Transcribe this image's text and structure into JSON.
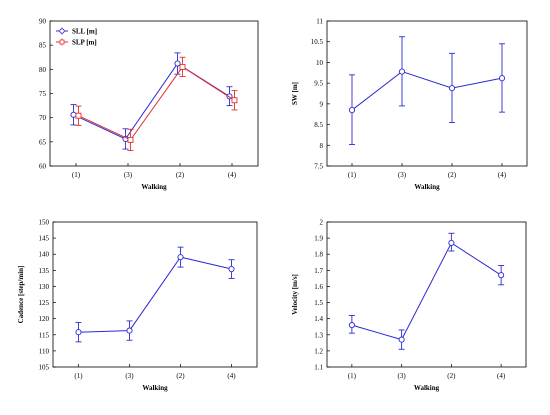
{
  "chart_data": [
    {
      "type": "line",
      "xlabel": "Walking",
      "ylabel": "",
      "categories": [
        "(1)",
        "(3)",
        "(2)",
        "(4)"
      ],
      "ylim": [
        60,
        90
      ],
      "yticks": [
        "60",
        "65",
        "70",
        "75",
        "80",
        "85",
        "90"
      ],
      "grid": false,
      "legend_position": "top-left",
      "series": [
        {
          "name": "SLL [m]",
          "color": "#2b2bd6",
          "marker": "circle",
          "values": [
            70.6,
            65.6,
            81.2,
            74.4
          ],
          "err_low": [
            68.5,
            63.5,
            79.0,
            72.5
          ],
          "err_high": [
            72.7,
            67.7,
            83.4,
            76.4
          ]
        },
        {
          "name": "SLP [m]",
          "color": "#e03030",
          "marker": "square",
          "values": [
            70.4,
            65.4,
            80.5,
            73.6
          ],
          "err_low": [
            68.4,
            63.2,
            78.5,
            71.6
          ],
          "err_high": [
            72.4,
            67.6,
            82.5,
            75.6
          ]
        }
      ]
    },
    {
      "type": "line",
      "xlabel": "Walking",
      "ylabel": "SW [m]",
      "categories": [
        "(1)",
        "(3)",
        "(2)",
        "(4)"
      ],
      "ylim": [
        7.5,
        11
      ],
      "yticks": [
        "7.5",
        "8",
        "8.5",
        "9",
        "9.5",
        "10",
        "10.5",
        "11"
      ],
      "grid": false,
      "series": [
        {
          "color": "#2b2bd6",
          "marker": "circle",
          "values": [
            8.85,
            9.78,
            9.38,
            9.62
          ],
          "err_low": [
            8.02,
            8.95,
            8.55,
            8.8
          ],
          "err_high": [
            9.7,
            10.62,
            10.22,
            10.45
          ]
        }
      ]
    },
    {
      "type": "line",
      "xlabel": "Walking",
      "ylabel": "Cadence [step/min]",
      "categories": [
        "(1)",
        "(3)",
        "(2)",
        "(4)"
      ],
      "ylim": [
        105,
        150
      ],
      "yticks": [
        "105",
        "110",
        "115",
        "120",
        "125",
        "130",
        "135",
        "140",
        "145",
        "150"
      ],
      "grid": false,
      "series": [
        {
          "color": "#2b2bd6",
          "marker": "circle",
          "values": [
            115.8,
            116.3,
            139.1,
            135.4
          ],
          "err_low": [
            112.8,
            113.3,
            136.0,
            132.5
          ],
          "err_high": [
            118.8,
            119.3,
            142.2,
            138.3
          ]
        }
      ]
    },
    {
      "type": "line",
      "xlabel": "Walking",
      "ylabel": "Velocity [m/s]",
      "categories": [
        "(1)",
        "(3)",
        "(2)",
        "(4)"
      ],
      "ylim": [
        1.1,
        2.0
      ],
      "yticks": [
        "1.1",
        "1.2",
        "1.3",
        "1.4",
        "1.5",
        "1.6",
        "1.7",
        "1.8",
        "1.9",
        "2"
      ],
      "grid": false,
      "series": [
        {
          "color": "#2b2bd6",
          "marker": "circle",
          "values": [
            1.36,
            1.27,
            1.87,
            1.67
          ],
          "err_low": [
            1.31,
            1.21,
            1.82,
            1.61
          ],
          "err_high": [
            1.42,
            1.33,
            1.93,
            1.73
          ]
        }
      ]
    }
  ]
}
